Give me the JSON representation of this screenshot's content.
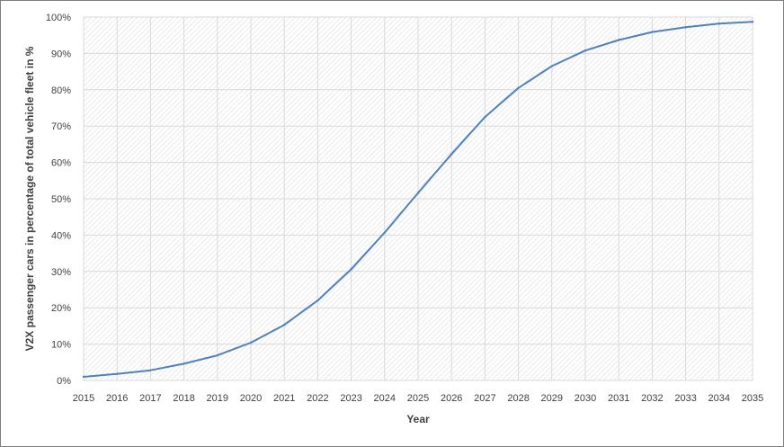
{
  "chart_data": {
    "type": "line",
    "title": "",
    "xlabel": "Year",
    "ylabel": "V2X passenger cars in percentage of total vehicle fleet in %",
    "x": [
      2015,
      2016,
      2017,
      2018,
      2019,
      2020,
      2021,
      2022,
      2023,
      2024,
      2025,
      2026,
      2027,
      2028,
      2029,
      2030,
      2031,
      2032,
      2033,
      2034,
      2035
    ],
    "x_tick_labels": [
      "2015",
      "2016",
      "2017",
      "2018",
      "2019",
      "2020",
      "2021",
      "2022",
      "2023",
      "2024",
      "2025",
      "2026",
      "2027",
      "2028",
      "2029",
      "2030",
      "2031",
      "2032",
      "2033",
      "2034",
      "2035"
    ],
    "y_tick_labels": [
      "0%",
      "10%",
      "20%",
      "30%",
      "40%",
      "50%",
      "60%",
      "70%",
      "80%",
      "90%",
      "100%"
    ],
    "ylim": [
      0,
      100
    ],
    "grid": true,
    "legend": "none",
    "series": [
      {
        "values": [
          1,
          1.8,
          2.8,
          4.6,
          6.9,
          10.4,
          15.3,
          22.0,
          30.6,
          40.7,
          51.6,
          62.3,
          72.5,
          80.5,
          86.5,
          90.8,
          93.7,
          95.9,
          97.2,
          98.2,
          98.7
        ],
        "color": "#4f81bd"
      }
    ]
  }
}
